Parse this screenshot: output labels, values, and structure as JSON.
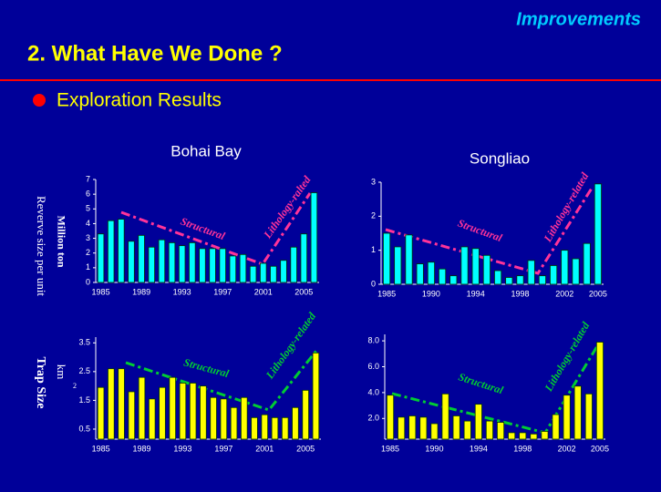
{
  "header": {
    "section": "Improvements",
    "title": "2. What Have We Done ?",
    "bullet": "Exploration Results"
  },
  "chart_data": [
    {
      "type": "bar",
      "title": "Bohai Bay",
      "ylabel": [
        "Reverve size per unit",
        "Million ton"
      ],
      "color": "#00ffff",
      "categories": [
        "1985",
        null,
        null,
        null,
        "1989",
        null,
        null,
        null,
        "1993",
        null,
        null,
        null,
        "1997",
        null,
        null,
        null,
        "2001",
        null,
        null,
        null,
        "2005",
        null
      ],
      "values": [
        3.3,
        4.2,
        4.3,
        2.8,
        3.2,
        2.4,
        2.9,
        2.7,
        2.5,
        2.7,
        2.3,
        2.3,
        2.3,
        1.8,
        1.9,
        1.1,
        1.3,
        1.1,
        1.5,
        2.4,
        3.3,
        6.1
      ],
      "ylim": [
        0,
        7
      ],
      "yticks": [
        0,
        1,
        2,
        3,
        4,
        5,
        6,
        7
      ],
      "annotations": [
        "Structural",
        "Lithology-ralted"
      ]
    },
    {
      "type": "bar",
      "title": "Songliao",
      "color": "#00ffff",
      "categories": [
        "1985",
        null,
        null,
        null,
        "1990",
        null,
        null,
        null,
        "1994",
        null,
        null,
        null,
        "1998",
        null,
        null,
        null,
        "2002",
        null,
        null,
        "2005"
      ],
      "values": [
        1.5,
        1.1,
        1.45,
        0.6,
        0.65,
        0.45,
        0.25,
        1.1,
        1.05,
        0.85,
        0.4,
        0.2,
        0.25,
        0.7,
        0.25,
        0.55,
        1.0,
        0.75,
        1.2,
        2.95
      ],
      "ylim": [
        0,
        3
      ],
      "yticks": [
        0,
        1,
        2,
        3
      ],
      "annotations": [
        "Structural",
        "Lithology-related"
      ]
    },
    {
      "type": "bar",
      "ylabel": [
        "Trap Size",
        "km",
        "2"
      ],
      "color": "#ffff00",
      "categories": [
        "1985",
        null,
        null,
        null,
        "1989",
        null,
        null,
        null,
        "1993",
        null,
        null,
        null,
        "1997",
        null,
        null,
        null,
        "2001",
        null,
        null,
        null,
        "2005",
        null
      ],
      "values": [
        1.95,
        2.6,
        2.6,
        1.8,
        2.3,
        1.55,
        1.95,
        2.3,
        2.1,
        2.1,
        2.0,
        1.6,
        1.55,
        1.25,
        1.6,
        0.9,
        1.0,
        0.9,
        0.9,
        1.25,
        1.85,
        3.15
      ],
      "ylim": [
        0.15,
        3.7
      ],
      "yticks": [
        0.5,
        1.5,
        2.5,
        3.5
      ],
      "annotations": [
        "Structural",
        "Lithology-related"
      ]
    },
    {
      "type": "bar",
      "color": "#ffff00",
      "categories": [
        "1985",
        null,
        null,
        null,
        "1990",
        null,
        null,
        null,
        "1994",
        null,
        null,
        null,
        "1998",
        null,
        null,
        null,
        "2002",
        null,
        null,
        "2005"
      ],
      "values": [
        3.8,
        2.1,
        2.2,
        2.1,
        1.6,
        3.9,
        2.2,
        1.8,
        3.1,
        1.8,
        1.7,
        0.9,
        0.9,
        0.8,
        1.0,
        2.3,
        3.8,
        4.5,
        3.9,
        7.9
      ],
      "ylim": [
        0.4,
        8.5
      ],
      "yticks": [
        {
          "value": 2,
          "label": "2.0"
        },
        {
          "value": 4,
          "label": "4.0"
        },
        {
          "value": 6,
          "label": "6.0"
        },
        {
          "value": 8,
          "label": "8.0"
        }
      ],
      "annotations": [
        "Structural",
        "Lithology-related"
      ]
    }
  ]
}
